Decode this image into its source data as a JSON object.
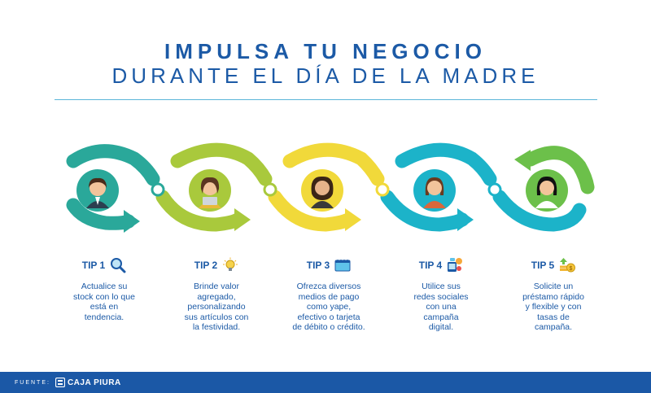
{
  "header": {
    "title_line1": "IMPULSA TU NEGOCIO",
    "title_line2": "DURANTE EL DÍA DE LA MADRE"
  },
  "colors": {
    "teal": "#2aa89a",
    "lime": "#a9c93c",
    "yellow": "#f1d93a",
    "cyan": "#1cb3c9",
    "green": "#6cc04a",
    "title_blue": "#1c5aa6",
    "footer_blue": "#1b58a6"
  },
  "tips": [
    {
      "label": "TIP 1",
      "icon": "magnifier-icon",
      "text": [
        "Actualice su",
        "stock con lo que",
        "está en",
        "tendencia."
      ]
    },
    {
      "label": "TIP 2",
      "icon": "lightbulb-icon",
      "text": [
        "Brinde valor",
        "agregado,",
        "personalizando",
        "sus artículos con",
        "la festividad."
      ]
    },
    {
      "label": "TIP 3",
      "icon": "card-icon",
      "text": [
        "Ofrezca diversos",
        "medios de pago",
        "como yape,",
        "efectivo o tarjeta",
        "de débito o crédito."
      ]
    },
    {
      "label": "TIP 4",
      "icon": "social-media-icon",
      "text": [
        "Utilice sus",
        "redes sociales",
        "con una",
        "campaña",
        "digital."
      ]
    },
    {
      "label": "TIP 5",
      "icon": "money-growth-icon",
      "text": [
        "Solicite un",
        "préstamo rápido",
        "y flexible y con",
        "tasas de",
        "campaña."
      ]
    }
  ],
  "footer": {
    "source_label": "FUENTE:",
    "brand": "CAJA PIURA"
  }
}
